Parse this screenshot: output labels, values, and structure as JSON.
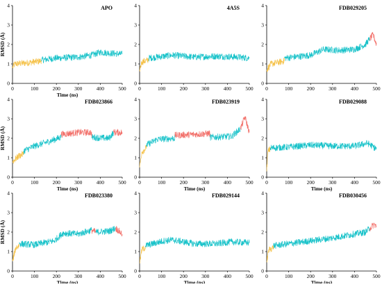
{
  "colors": {
    "teal": "#17c2c9",
    "orange": "#f5c24a",
    "red": "#f2706a"
  },
  "chart_data": [
    {
      "type": "line",
      "title": "APO",
      "xlabel": "Time (ns)",
      "ylabel": "RMSD (Å)",
      "xlim": [
        0,
        500
      ],
      "ylim": [
        0,
        4
      ],
      "xticks": [
        "0",
        "100",
        "200",
        "300",
        "400",
        "500"
      ],
      "yticks": [
        "0",
        "1",
        "2",
        "3",
        "4"
      ],
      "series": [
        {
          "values": [
            {
              "t": 0,
              "c": "orange",
              "v": 0.8
            },
            {
              "t": 10,
              "c": "orange",
              "v": 1.0
            },
            {
              "t": 60,
              "c": "orange",
              "v": 1.05
            },
            {
              "t": 130,
              "c": "orange",
              "v": 1.15
            },
            {
              "t": 131,
              "c": "teal",
              "v": 1.2
            },
            {
              "t": 200,
              "c": "teal",
              "v": 1.3
            },
            {
              "t": 300,
              "c": "teal",
              "v": 1.35
            },
            {
              "t": 360,
              "c": "teal",
              "v": 1.45
            },
            {
              "t": 400,
              "c": "teal",
              "v": 1.6
            },
            {
              "t": 450,
              "c": "teal",
              "v": 1.55
            },
            {
              "t": 500,
              "c": "teal",
              "v": 1.5
            }
          ]
        }
      ]
    },
    {
      "type": "line",
      "title": "4A5S",
      "xlabel": "",
      "ylabel": "",
      "xlim": [
        0,
        500
      ],
      "ylim": [
        0,
        4
      ],
      "xticks": [
        "0",
        "100",
        "200",
        "300",
        "400",
        "500"
      ],
      "yticks": [
        "0",
        "1",
        "2",
        "3",
        "4"
      ],
      "series": [
        {
          "values": [
            {
              "t": 0,
              "c": "orange",
              "v": 0.7
            },
            {
              "t": 10,
              "c": "orange",
              "v": 1.1
            },
            {
              "t": 40,
              "c": "orange",
              "v": 1.2
            },
            {
              "t": 41,
              "c": "teal",
              "v": 1.3
            },
            {
              "t": 150,
              "c": "teal",
              "v": 1.45
            },
            {
              "t": 250,
              "c": "teal",
              "v": 1.35
            },
            {
              "t": 350,
              "c": "teal",
              "v": 1.4
            },
            {
              "t": 450,
              "c": "teal",
              "v": 1.35
            },
            {
              "t": 500,
              "c": "teal",
              "v": 1.3
            }
          ]
        }
      ]
    },
    {
      "type": "line",
      "title": "FDB029205",
      "xlabel": "",
      "ylabel": "",
      "xlim": [
        0,
        500
      ],
      "ylim": [
        0,
        4
      ],
      "xticks": [
        "0",
        "100",
        "200",
        "300",
        "400",
        "500"
      ],
      "yticks": [
        "0",
        "1",
        "2",
        "3",
        "4"
      ],
      "series": [
        {
          "values": [
            {
              "t": 0,
              "c": "orange",
              "v": 0.7
            },
            {
              "t": 20,
              "c": "orange",
              "v": 1.0
            },
            {
              "t": 80,
              "c": "orange",
              "v": 1.15
            },
            {
              "t": 81,
              "c": "teal",
              "v": 1.3
            },
            {
              "t": 200,
              "c": "teal",
              "v": 1.45
            },
            {
              "t": 260,
              "c": "teal",
              "v": 1.75
            },
            {
              "t": 330,
              "c": "teal",
              "v": 1.7
            },
            {
              "t": 400,
              "c": "teal",
              "v": 1.75
            },
            {
              "t": 450,
              "c": "teal",
              "v": 2.0
            },
            {
              "t": 470,
              "c": "red",
              "v": 2.3
            },
            {
              "t": 485,
              "c": "red",
              "v": 2.5
            },
            {
              "t": 500,
              "c": "teal",
              "v": 2.0
            }
          ]
        }
      ]
    },
    {
      "type": "line",
      "title": "FDB023866",
      "xlabel": "Time (ns)",
      "ylabel": "RMSD (Å)",
      "xlim": [
        0,
        500
      ],
      "ylim": [
        0,
        4
      ],
      "xticks": [
        "0",
        "100",
        "200",
        "300",
        "400",
        "500"
      ],
      "yticks": [
        "0",
        "1",
        "2",
        "3",
        "4"
      ],
      "series": [
        {
          "values": [
            {
              "t": 0,
              "c": "orange",
              "v": 0.8
            },
            {
              "t": 30,
              "c": "orange",
              "v": 1.1
            },
            {
              "t": 50,
              "c": "orange",
              "v": 1.2
            },
            {
              "t": 51,
              "c": "teal",
              "v": 1.35
            },
            {
              "t": 100,
              "c": "teal",
              "v": 1.6
            },
            {
              "t": 170,
              "c": "teal",
              "v": 1.85
            },
            {
              "t": 220,
              "c": "teal",
              "v": 2.05
            },
            {
              "t": 221,
              "c": "red",
              "v": 2.2
            },
            {
              "t": 300,
              "c": "red",
              "v": 2.3
            },
            {
              "t": 360,
              "c": "red",
              "v": 2.3
            },
            {
              "t": 361,
              "c": "teal",
              "v": 2.05
            },
            {
              "t": 440,
              "c": "teal",
              "v": 2.0
            },
            {
              "t": 460,
              "c": "red",
              "v": 2.3
            },
            {
              "t": 500,
              "c": "red",
              "v": 2.3
            }
          ]
        }
      ]
    },
    {
      "type": "line",
      "title": "FDB023919",
      "xlabel": "Time (ns)",
      "ylabel": "",
      "xlim": [
        0,
        500
      ],
      "ylim": [
        0,
        4
      ],
      "xticks": [
        "0",
        "100",
        "200",
        "300",
        "400",
        "500"
      ],
      "yticks": [
        "0",
        "1",
        "2",
        "3",
        "4"
      ],
      "series": [
        {
          "values": [
            {
              "t": 0,
              "c": "orange",
              "v": 0.5
            },
            {
              "t": 10,
              "c": "orange",
              "v": 1.3
            },
            {
              "t": 30,
              "c": "orange",
              "v": 1.5
            },
            {
              "t": 31,
              "c": "teal",
              "v": 1.65
            },
            {
              "t": 80,
              "c": "teal",
              "v": 1.95
            },
            {
              "t": 160,
              "c": "teal",
              "v": 2.0
            },
            {
              "t": 161,
              "c": "red",
              "v": 2.15
            },
            {
              "t": 250,
              "c": "red",
              "v": 2.2
            },
            {
              "t": 320,
              "c": "red",
              "v": 2.25
            },
            {
              "t": 321,
              "c": "teal",
              "v": 2.05
            },
            {
              "t": 420,
              "c": "teal",
              "v": 2.1
            },
            {
              "t": 460,
              "c": "red",
              "v": 2.5
            },
            {
              "t": 480,
              "c": "red",
              "v": 3.1
            },
            {
              "t": 500,
              "c": "red",
              "v": 2.3
            }
          ]
        }
      ]
    },
    {
      "type": "line",
      "title": "FDB029088",
      "xlabel": "Time (ns)",
      "ylabel": "",
      "xlim": [
        0,
        500
      ],
      "ylim": [
        0,
        4
      ],
      "xticks": [
        "0",
        "100",
        "200",
        "300",
        "400",
        "500"
      ],
      "yticks": [
        "0",
        "1",
        "2",
        "3",
        "4"
      ],
      "series": [
        {
          "values": [
            {
              "t": 0,
              "c": "orange",
              "v": 0.3
            },
            {
              "t": 5,
              "c": "orange",
              "v": 1.3
            },
            {
              "t": 15,
              "c": "orange",
              "v": 1.45
            },
            {
              "t": 16,
              "c": "teal",
              "v": 1.5
            },
            {
              "t": 100,
              "c": "teal",
              "v": 1.55
            },
            {
              "t": 200,
              "c": "teal",
              "v": 1.65
            },
            {
              "t": 300,
              "c": "teal",
              "v": 1.6
            },
            {
              "t": 400,
              "c": "teal",
              "v": 1.6
            },
            {
              "t": 460,
              "c": "teal",
              "v": 1.75
            },
            {
              "t": 500,
              "c": "teal",
              "v": 1.45
            }
          ]
        }
      ]
    },
    {
      "type": "line",
      "title": "FDB023380",
      "xlabel": "Time (ns)",
      "ylabel": "RMSD (Å)",
      "xlim": [
        0,
        500
      ],
      "ylim": [
        0,
        4
      ],
      "xticks": [
        "0",
        "100",
        "200",
        "300",
        "400",
        "500"
      ],
      "yticks": [
        "0",
        "1",
        "2",
        "3",
        "4"
      ],
      "series": [
        {
          "values": [
            {
              "t": 0,
              "c": "orange",
              "v": 0.5
            },
            {
              "t": 15,
              "c": "orange",
              "v": 1.2
            },
            {
              "t": 30,
              "c": "orange",
              "v": 1.3
            },
            {
              "t": 31,
              "c": "teal",
              "v": 1.4
            },
            {
              "t": 100,
              "c": "teal",
              "v": 1.35
            },
            {
              "t": 190,
              "c": "teal",
              "v": 1.55
            },
            {
              "t": 230,
              "c": "teal",
              "v": 1.95
            },
            {
              "t": 300,
              "c": "teal",
              "v": 1.9
            },
            {
              "t": 360,
              "c": "red",
              "v": 2.1
            },
            {
              "t": 380,
              "c": "teal",
              "v": 2.0
            },
            {
              "t": 440,
              "c": "teal",
              "v": 2.05
            },
            {
              "t": 470,
              "c": "red",
              "v": 2.2
            },
            {
              "t": 500,
              "c": "teal",
              "v": 1.9
            }
          ]
        }
      ]
    },
    {
      "type": "line",
      "title": "FDB029144",
      "xlabel": "Time (ns)",
      "ylabel": "",
      "xlim": [
        0,
        500
      ],
      "ylim": [
        0,
        4
      ],
      "xticks": [
        "0",
        "100",
        "200",
        "300",
        "400",
        "500"
      ],
      "yticks": [
        "0",
        "1",
        "2",
        "3",
        "4"
      ],
      "series": [
        {
          "values": [
            {
              "t": 0,
              "c": "orange",
              "v": 0.4
            },
            {
              "t": 10,
              "c": "orange",
              "v": 1.1
            },
            {
              "t": 25,
              "c": "orange",
              "v": 1.2
            },
            {
              "t": 26,
              "c": "teal",
              "v": 1.3
            },
            {
              "t": 110,
              "c": "teal",
              "v": 1.55
            },
            {
              "t": 150,
              "c": "teal",
              "v": 1.6
            },
            {
              "t": 250,
              "c": "teal",
              "v": 1.4
            },
            {
              "t": 350,
              "c": "teal",
              "v": 1.4
            },
            {
              "t": 420,
              "c": "teal",
              "v": 1.5
            },
            {
              "t": 500,
              "c": "teal",
              "v": 1.45
            }
          ]
        }
      ]
    },
    {
      "type": "line",
      "title": "FDB030456",
      "xlabel": "Time (ns)",
      "ylabel": "",
      "xlim": [
        0,
        500
      ],
      "ylim": [
        0,
        4
      ],
      "xticks": [
        "0",
        "100",
        "200",
        "300",
        "400",
        "500"
      ],
      "yticks": [
        "0",
        "1",
        "2",
        "3",
        "4"
      ],
      "series": [
        {
          "values": [
            {
              "t": 0,
              "c": "orange",
              "v": 0.5
            },
            {
              "t": 10,
              "c": "orange",
              "v": 1.1
            },
            {
              "t": 30,
              "c": "orange",
              "v": 1.2
            },
            {
              "t": 31,
              "c": "teal",
              "v": 1.3
            },
            {
              "t": 100,
              "c": "teal",
              "v": 1.4
            },
            {
              "t": 200,
              "c": "teal",
              "v": 1.55
            },
            {
              "t": 300,
              "c": "teal",
              "v": 1.7
            },
            {
              "t": 400,
              "c": "teal",
              "v": 1.9
            },
            {
              "t": 450,
              "c": "teal",
              "v": 2.0
            },
            {
              "t": 470,
              "c": "red",
              "v": 2.2
            },
            {
              "t": 490,
              "c": "red",
              "v": 2.4
            },
            {
              "t": 500,
              "c": "red",
              "v": 2.3
            }
          ]
        }
      ]
    }
  ]
}
